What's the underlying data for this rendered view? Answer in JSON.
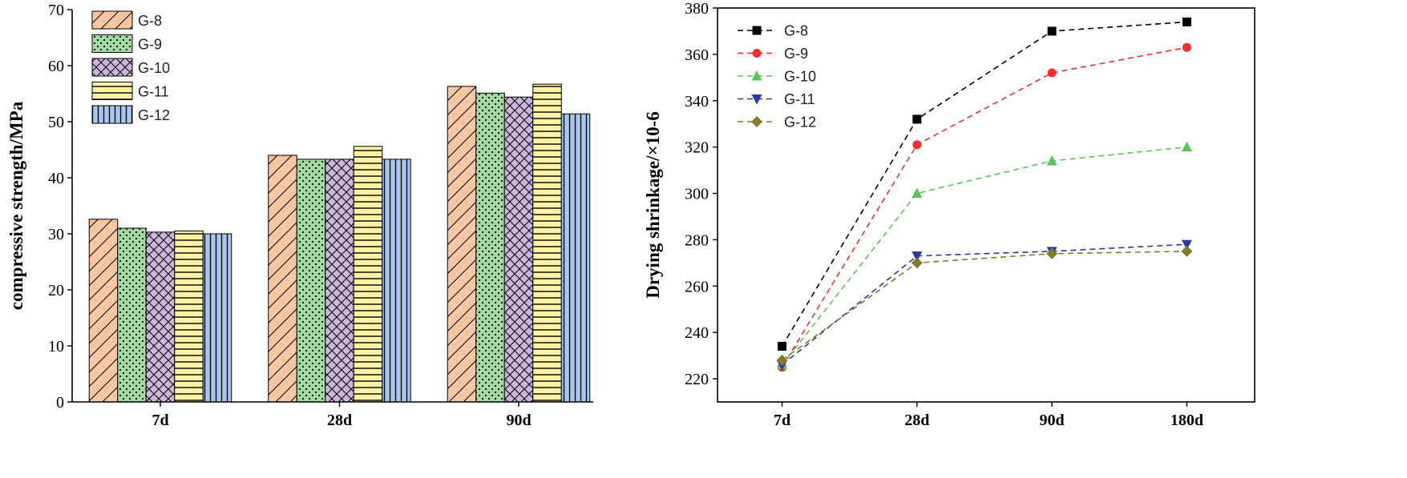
{
  "figure": {
    "background": "#ffffff"
  },
  "chart_data": [
    {
      "type": "bar",
      "ylabel": "compressive strength/MPa",
      "ylim": [
        0,
        70
      ],
      "yticks": [
        0,
        10,
        20,
        30,
        40,
        50,
        60,
        70
      ],
      "categories": [
        "7d",
        "28d",
        "90d"
      ],
      "legend_position": "top-left",
      "grid": false,
      "series": [
        {
          "name": "G-8",
          "values": [
            32.6,
            44.0,
            56.3
          ],
          "color": "#F8C6A0"
        },
        {
          "name": "G-9",
          "values": [
            31.0,
            43.3,
            55.1
          ],
          "color": "#A3D9A3"
        },
        {
          "name": "G-10",
          "values": [
            30.3,
            43.3,
            54.4
          ],
          "color": "#CBB6DA"
        },
        {
          "name": "G-11",
          "values": [
            30.5,
            45.6,
            56.7
          ],
          "color": "#FFF3A6"
        },
        {
          "name": "G-12",
          "values": [
            30.0,
            43.3,
            51.4
          ],
          "color": "#A8C7EE"
        }
      ]
    },
    {
      "type": "line",
      "ylabel": "Drying shrinkage/×10-6",
      "ylim": [
        210,
        380
      ],
      "yticks": [
        220,
        240,
        260,
        280,
        300,
        320,
        340,
        360,
        380
      ],
      "categories": [
        "7d",
        "28d",
        "90d",
        "180d"
      ],
      "legend_position": "top-left",
      "grid": false,
      "series": [
        {
          "name": "G-8",
          "values": [
            234,
            332,
            370,
            374
          ],
          "color": "#000000"
        },
        {
          "name": "G-9",
          "values": [
            225,
            321,
            352,
            363
          ],
          "color": "#F02E2E"
        },
        {
          "name": "G-10",
          "values": [
            226,
            300,
            314,
            320
          ],
          "color": "#5BC35B"
        },
        {
          "name": "G-11",
          "values": [
            226,
            273,
            275,
            278
          ],
          "color": "#2B3AA0"
        },
        {
          "name": "G-12",
          "values": [
            228,
            270,
            274,
            275
          ],
          "color": "#7E7C2E"
        }
      ]
    }
  ]
}
